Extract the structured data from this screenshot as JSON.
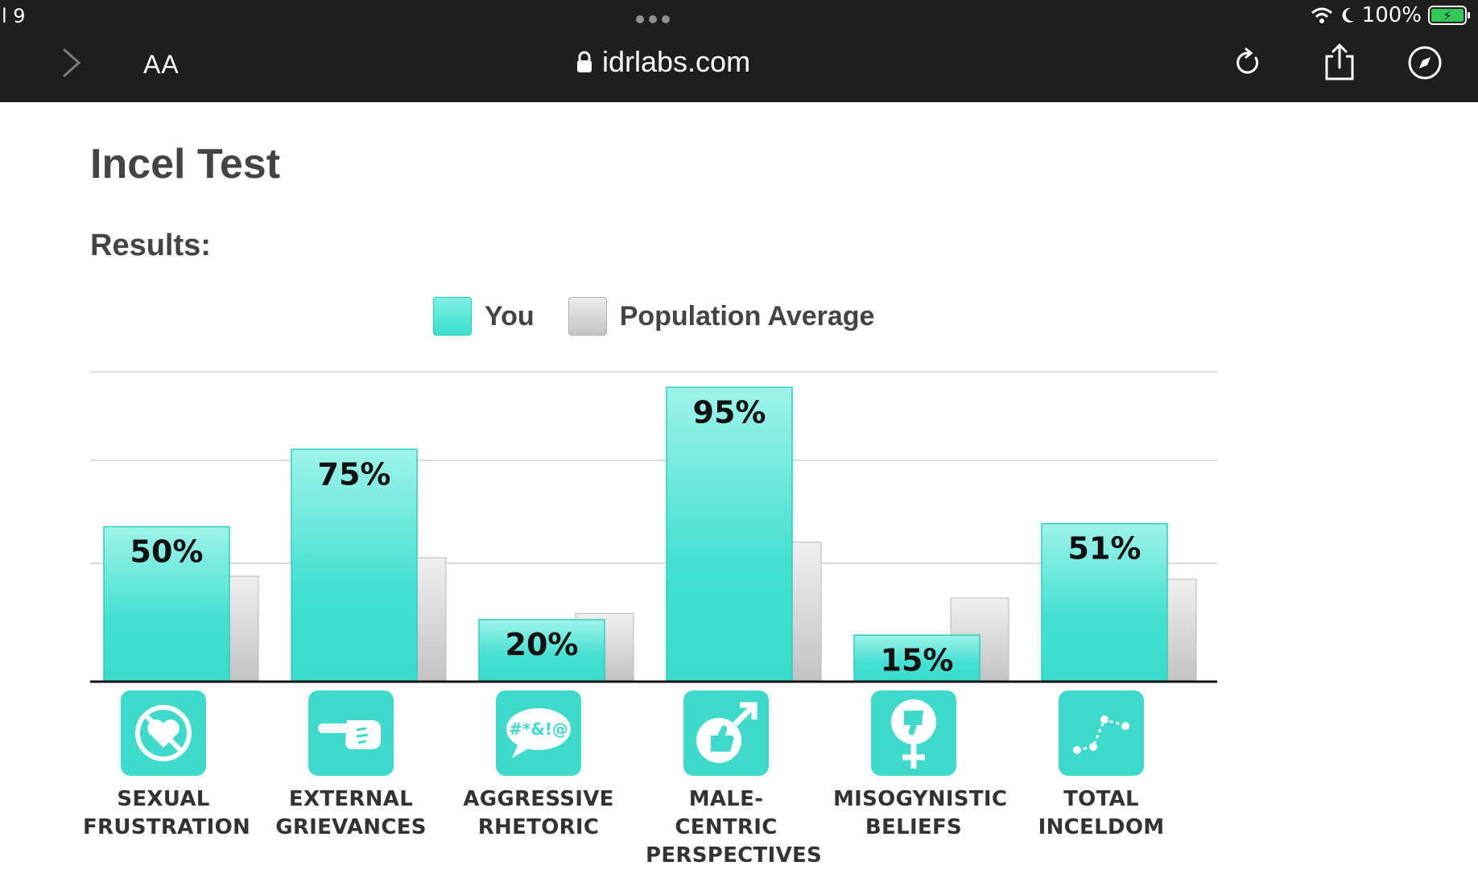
{
  "status_bar": {
    "carrier": "l 9",
    "battery": "100%"
  },
  "browser": {
    "text_size_label": "AA",
    "url": "idrlabs.com"
  },
  "page": {
    "title": "Incel Test",
    "results_label": "Results:"
  },
  "legend": {
    "you": "You",
    "avg": "Population Average"
  },
  "chart_data": {
    "type": "bar",
    "categories": [
      "SEXUAL FRUSTRATION",
      "EXTERNAL GRIEVANCES",
      "AGGRESSIVE RHETORIC",
      "MALE-CENTRIC PERSPECTIVES",
      "MISOGYNISTIC BELIEFS",
      "TOTAL INCELDOM"
    ],
    "category_lines": [
      [
        "SEXUAL",
        "FRUSTRATION"
      ],
      [
        "EXTERNAL",
        "GRIEVANCES"
      ],
      [
        "AGGRESSIVE",
        "RHETORIC"
      ],
      [
        "MALE-CENTRIC",
        "PERSPECTIVES"
      ],
      [
        "MISOGYNISTIC",
        "BELIEFS"
      ],
      [
        "TOTAL",
        "INCELDOM"
      ]
    ],
    "series": [
      {
        "name": "You",
        "values": [
          50,
          75,
          20,
          95,
          15,
          51
        ],
        "labels": [
          "50%",
          "75%",
          "20%",
          "95%",
          "15%",
          "51%"
        ],
        "color": "#3fdfcf"
      },
      {
        "name": "Population Average",
        "values": [
          34,
          40,
          22,
          45,
          27,
          33
        ],
        "color": "#d0d0d0"
      }
    ],
    "ylim": [
      0,
      100
    ],
    "grid": true,
    "legend_position": "top"
  },
  "icons": [
    "no-heart-icon",
    "pointing-hand-icon",
    "speech-bubble-icon",
    "thumbs-up-male-icon",
    "thumbs-down-female-icon",
    "line-graph-icon"
  ]
}
